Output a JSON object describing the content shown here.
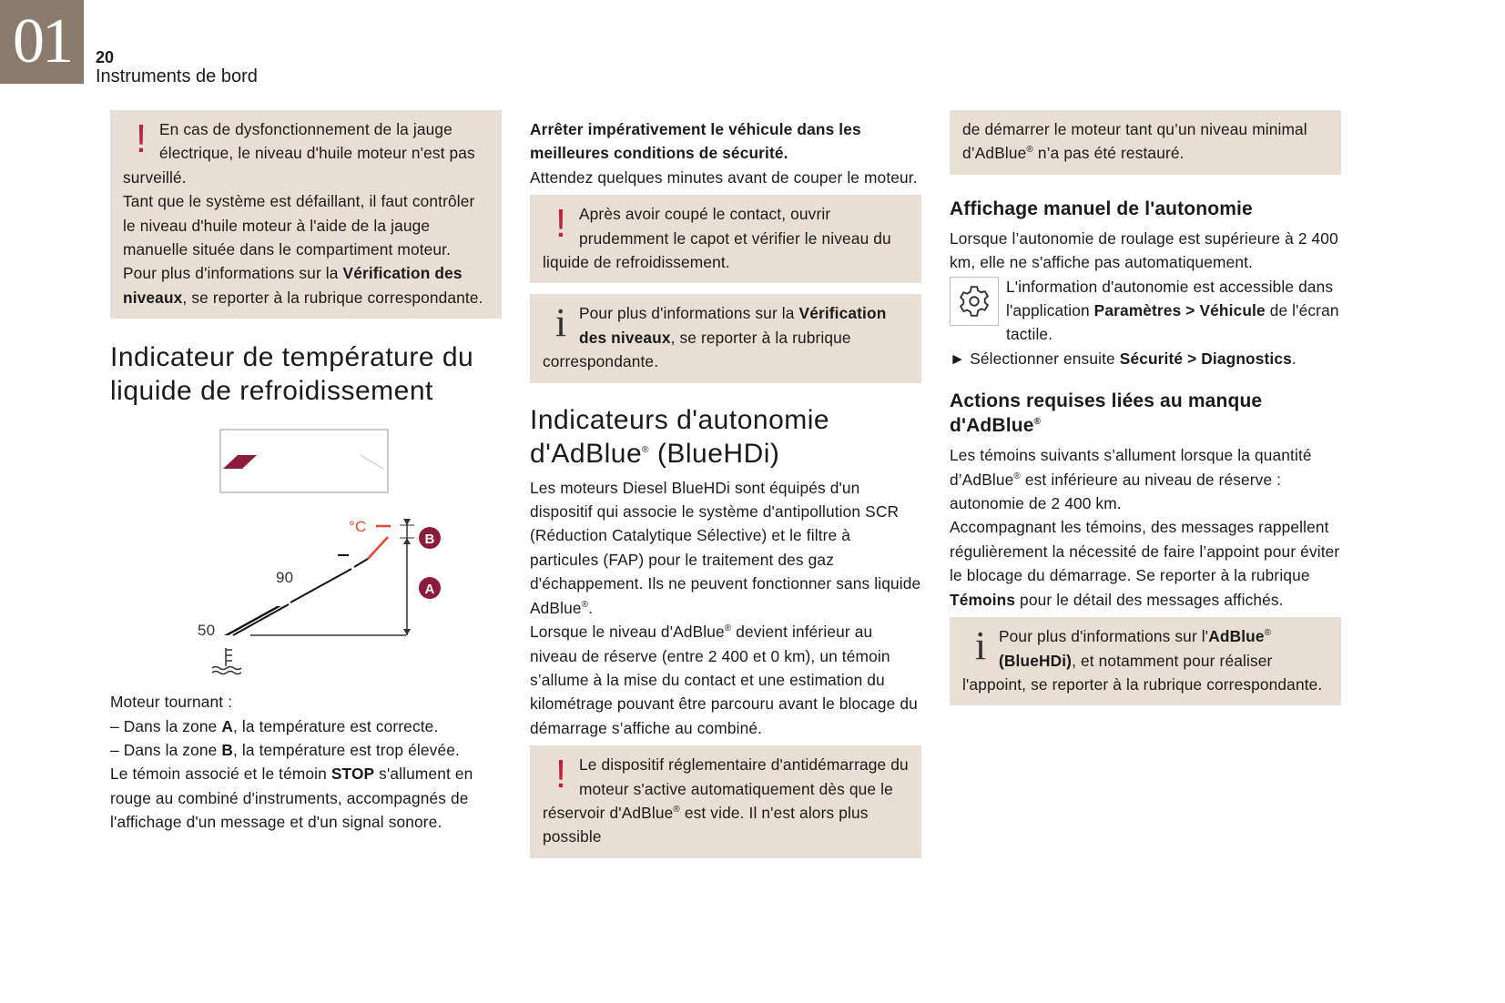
{
  "header": {
    "chapter": "01",
    "page": "20",
    "title": "Instruments de bord"
  },
  "colors": {
    "box": "#e8ded4",
    "tab": "#8c7b6c",
    "warning": "#c2203a",
    "marker": "#8b1c3c",
    "hot": "#e8452c"
  },
  "col1": {
    "warn_box": {
      "icon": "exclamation-icon",
      "paras": [
        [
          {
            "t": "En cas de dysfonctionnement de la jauge électrique, le niveau d'huile moteur n'est pas surveillé."
          }
        ],
        [
          {
            "t": "Tant que le système est défaillant, il faut contrôler le niveau d'huile moteur à l'aide de la jauge manuelle située dans le compartiment moteur."
          }
        ],
        [
          {
            "t": "Pour plus d'informations sur la "
          },
          {
            "t": "Vérification des niveaux",
            "b": true
          },
          {
            "t": ", se reporter à la rubrique correspondante."
          }
        ]
      ]
    },
    "heading": "Indicateur de température du liquide de refroidissement",
    "diagram": {
      "label_50": "50",
      "label_90": "90",
      "unit": "°C",
      "zone_a": "A",
      "zone_b": "B"
    },
    "paras": [
      [
        {
          "t": "Moteur tournant :"
        }
      ]
    ],
    "list": [
      [
        {
          "t": "–  Dans la zone "
        },
        {
          "t": "A",
          "b": true
        },
        {
          "t": ", la température est correcte."
        }
      ],
      [
        {
          "t": "–  Dans la zone "
        },
        {
          "t": "B",
          "b": true
        },
        {
          "t": ", la température est trop élevée."
        }
      ]
    ],
    "paras2": [
      [
        {
          "t": "Le témoin associé et le témoin "
        },
        {
          "t": "STOP",
          "b": true
        },
        {
          "t": " s'allument en rouge au combiné d'instruments, accompagnés de l'affichage d'un message et d'un signal sonore."
        }
      ]
    ]
  },
  "col2": {
    "paras": [
      [
        {
          "t": "Arrêter impérativement le véhicule dans les meilleures conditions de sécurité.",
          "b": true
        }
      ],
      [
        {
          "t": "Attendez quelques minutes avant de couper le moteur."
        }
      ]
    ],
    "warn_box": {
      "icon": "exclamation-icon",
      "paras": [
        [
          {
            "t": "Après avoir coupé le contact, ouvrir prudemment le capot et vérifier le niveau du liquide de refroidissement."
          }
        ]
      ]
    },
    "info_box": {
      "icon": "info-icon",
      "paras": [
        [
          {
            "t": "Pour plus d'informations sur la "
          },
          {
            "t": "Vérification des niveaux",
            "b": true
          },
          {
            "t": ", se reporter à la rubrique correspondante."
          }
        ]
      ]
    },
    "heading": [
      {
        "t": "Indicateurs d'autonomie d'AdBlue"
      },
      {
        "t": "®",
        "sup": true
      },
      {
        "t": " (BlueHDi)"
      }
    ],
    "body": [
      [
        {
          "t": "Les moteurs Diesel BlueHDi sont équipés d'un dispositif qui associe le système d'antipollution SCR (Réduction Catalytique Sélective) et le filtre à particules (FAP) pour le traitement des gaz d'échappement. Ils ne peuvent fonctionner sans liquide AdBlue"
        },
        {
          "t": "®",
          "sup": true
        },
        {
          "t": "."
        }
      ],
      [
        {
          "t": "Lorsque le niveau d'AdBlue"
        },
        {
          "t": "®",
          "sup": true
        },
        {
          "t": " devient inférieur au niveau de réserve (entre 2 400 et 0 km), un témoin s’allume à la mise du contact et une estimation du kilométrage pouvant être parcouru avant le blocage du démarrage s’affiche au combiné."
        }
      ]
    ],
    "warn_box2": {
      "icon": "exclamation-icon",
      "paras": [
        [
          {
            "t": "Le dispositif réglementaire d'antidémarrage du moteur s'active automatiquement dès que le réservoir d'AdBlue"
          },
          {
            "t": "®",
            "sup": true
          },
          {
            "t": " est vide. Il n'est alors plus possible"
          }
        ]
      ]
    }
  },
  "col3": {
    "cont_box": {
      "paras": [
        [
          {
            "t": "de démarrer le moteur tant qu’un niveau minimal d’AdBlue"
          },
          {
            "t": "®",
            "sup": true
          },
          {
            "t": " n’a pas été restauré."
          }
        ]
      ]
    },
    "heading1": [
      {
        "t": "Affichage manuel de l'autonomie"
      }
    ],
    "p1": [
      [
        {
          "t": "Lorsque l’autonomie de roulage est supérieure à 2 400 km, elle ne s'affiche pas automatiquement."
        }
      ]
    ],
    "p2": [
      [
        {
          "t": "L'information d'autonomie est accessible dans l'application "
        },
        {
          "t": "Paramètres > Véhicule",
          "b": true
        },
        {
          "t": " de l'écran tactile."
        }
      ]
    ],
    "p3": [
      [
        {
          "t": "►  Sélectionner ensuite "
        },
        {
          "t": "Sécurité > Diagnostics",
          "b": true
        },
        {
          "t": "."
        }
      ]
    ],
    "heading2": [
      {
        "t": "Actions requises liées au manque d'AdBlue"
      },
      {
        "t": "®",
        "sup": true
      }
    ],
    "p4": [
      [
        {
          "t": "Les témoins suivants s’allument lorsque la quantité d’AdBlue"
        },
        {
          "t": "®",
          "sup": true
        },
        {
          "t": " est inférieure au niveau de réserve : autonomie de 2 400 km."
        }
      ],
      [
        {
          "t": "Accompagnant les témoins, des messages rappellent régulièrement la nécessité de faire l’appoint pour éviter le blocage du démarrage. Se reporter à la rubrique "
        },
        {
          "t": "Témoins",
          "b": true
        },
        {
          "t": " pour le détail des messages affichés."
        }
      ]
    ],
    "info_box": {
      "icon": "info-icon",
      "paras": [
        [
          {
            "t": "Pour plus d'informations sur l'"
          },
          {
            "t": "AdBlue",
            "b": true
          },
          {
            "t": "®",
            "sup": true
          },
          {
            "t": " (BlueHDi)",
            "b": true
          },
          {
            "t": ", et notamment pour réaliser l'appoint, se reporter à la rubrique correspondante."
          }
        ]
      ]
    }
  }
}
